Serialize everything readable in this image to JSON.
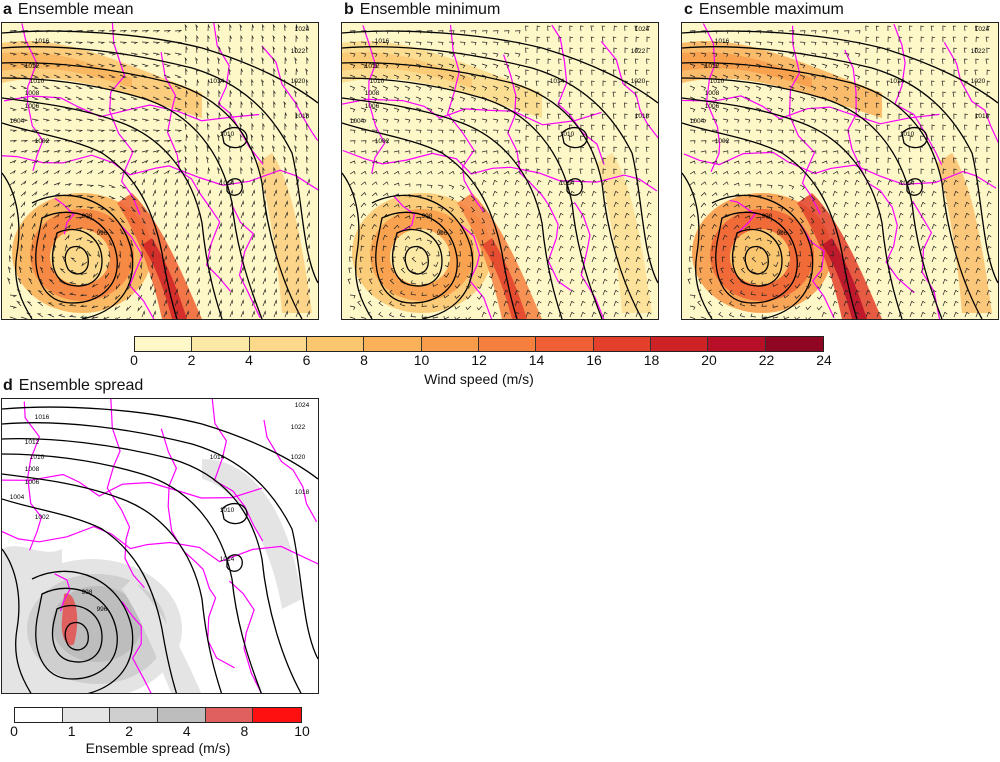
{
  "panels": [
    {
      "letter": "a",
      "title": "Ensemble mean"
    },
    {
      "letter": "b",
      "title": "Ensemble minimum"
    },
    {
      "letter": "c",
      "title": "Ensemble maximum"
    },
    {
      "letter": "d",
      "title": "Ensemble spread"
    }
  ],
  "pressure_labels": [
    "1024",
    "1022",
    "1020",
    "1018",
    "1016",
    "1014",
    "1012",
    "1010",
    "1008",
    "1006",
    "1004",
    "1002",
    "998",
    "996",
    "1010",
    "1014"
  ],
  "wind_colorbar": {
    "label": "Wind speed (m/s)",
    "ticks": [
      "0",
      "2",
      "4",
      "6",
      "8",
      "10",
      "12",
      "14",
      "16",
      "18",
      "20",
      "22",
      "24"
    ],
    "colors": [
      "#fef7c7",
      "#fde9a6",
      "#fcd98a",
      "#fbc670",
      "#f9b25a",
      "#f89b4a",
      "#f5803e",
      "#ee6033",
      "#e2402a",
      "#cf2226",
      "#b70f28",
      "#8f0622"
    ]
  },
  "spread_colorbar": {
    "label": "Ensemble spread (m/s)",
    "ticks": [
      "0",
      "1",
      "2",
      "4",
      "8",
      "10"
    ],
    "colors": [
      "#ffffff",
      "#e4e4e4",
      "#cfcfcf",
      "#bdbdbd",
      "#e06060",
      "#ff1010"
    ]
  }
}
